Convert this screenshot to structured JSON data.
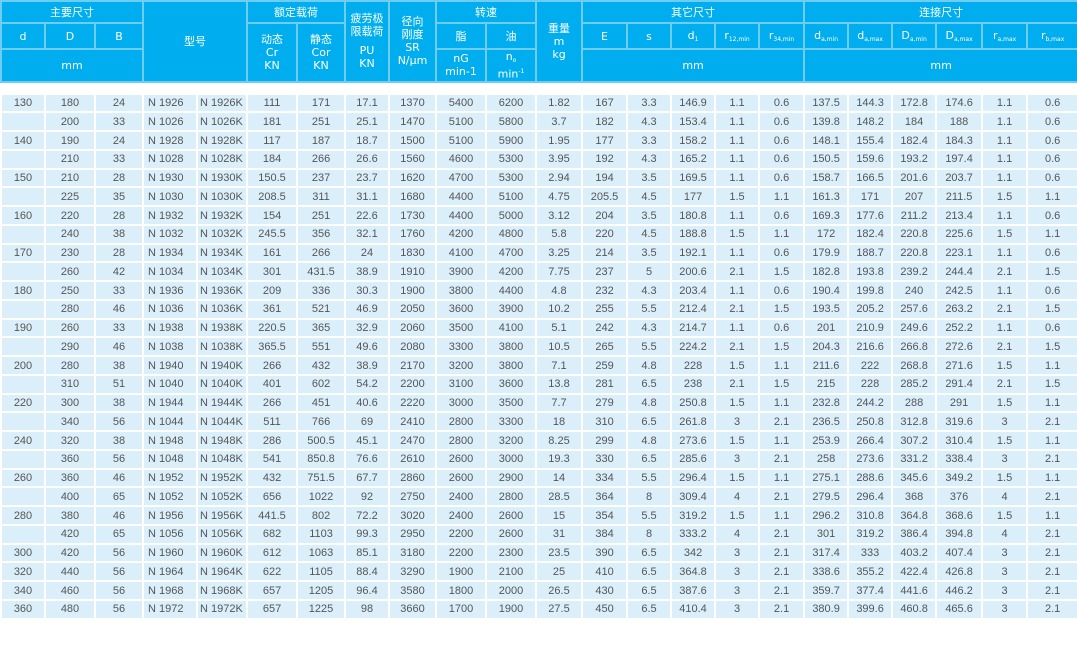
{
  "colors": {
    "header_bg": "#00aeef",
    "row_bg": "#dbeffb",
    "text": "#555555"
  },
  "header": {
    "main_dims": "主要尺寸",
    "d": "d",
    "D": "D",
    "B": "B",
    "mm": "mm",
    "model": "型号",
    "rated_load": "额定载荷",
    "dynamic": "动态",
    "Cr": "Cr",
    "static": "静态",
    "Cor": "Cor",
    "KN": "KN",
    "fatigue_1": "疲劳极",
    "fatigue_2": "限载荷",
    "PU": "PU",
    "radial_1": "径向",
    "radial_2": "刚度",
    "SR": "SR",
    "SR_unit": "N/μm",
    "speed": "转速",
    "grease": "脂",
    "oil": "油",
    "nG": "nG",
    "nG_unit": "min-1",
    "no": "n",
    "no_sub": "o",
    "no_unit": "min",
    "no_sup": "-1",
    "weight": "重量",
    "m": "m",
    "kg": "kg",
    "other_dims": "其它尺寸",
    "E": "E",
    "s": "s",
    "d1": "d",
    "d1_sub": "1",
    "r12": "r",
    "r12_sub": "12,min",
    "r34": "r",
    "r34_sub": "34,min",
    "conn_dims": "连接尺寸",
    "da_min": "d",
    "da_min_sub": "a,min",
    "da_max": "d",
    "da_max_sub": "a,max",
    "Da_min": "D",
    "Da_min_sub": "a,min",
    "Da_max": "D",
    "Da_max_sub": "a,max",
    "ra_max": "r",
    "ra_max_sub": "a,max",
    "rb_max": "r",
    "rb_max_sub": "b,max"
  },
  "rows": [
    [
      "130",
      "180",
      "24",
      "N 1926",
      "N 1926K",
      "111",
      "171",
      "17.1",
      "1370",
      "5400",
      "6200",
      "1.82",
      "167",
      "3.3",
      "146.9",
      "1.1",
      "0.6",
      "137.5",
      "144.3",
      "172.8",
      "174.6",
      "1.1",
      "0.6"
    ],
    [
      "",
      "200",
      "33",
      "N 1026",
      "N 1026K",
      "181",
      "251",
      "25.1",
      "1470",
      "5100",
      "5800",
      "3.7",
      "182",
      "4.3",
      "153.4",
      "1.1",
      "0.6",
      "139.8",
      "148.2",
      "184",
      "188",
      "1.1",
      "0.6"
    ],
    [
      "140",
      "190",
      "24",
      "N 1928",
      "N 1928K",
      "117",
      "187",
      "18.7",
      "1500",
      "5100",
      "5900",
      "1.95",
      "177",
      "3.3",
      "158.2",
      "1.1",
      "0.6",
      "148.1",
      "155.4",
      "182.4",
      "184.3",
      "1.1",
      "0.6"
    ],
    [
      "",
      "210",
      "33",
      "N 1028",
      "N 1028K",
      "184",
      "266",
      "26.6",
      "1560",
      "4600",
      "5300",
      "3.95",
      "192",
      "4.3",
      "165.2",
      "1.1",
      "0.6",
      "150.5",
      "159.6",
      "193.2",
      "197.4",
      "1.1",
      "0.6"
    ],
    [
      "150",
      "210",
      "28",
      "N 1930",
      "N 1930K",
      "150.5",
      "237",
      "23.7",
      "1620",
      "4700",
      "5300",
      "2.94",
      "194",
      "3.5",
      "169.5",
      "1.1",
      "0.6",
      "158.7",
      "166.5",
      "201.6",
      "203.7",
      "1.1",
      "0.6"
    ],
    [
      "",
      "225",
      "35",
      "N 1030",
      "N 1030K",
      "208.5",
      "311",
      "31.1",
      "1680",
      "4400",
      "5100",
      "4.75",
      "205.5",
      "4.5",
      "177",
      "1.5",
      "1.1",
      "161.3",
      "171",
      "207",
      "211.5",
      "1.5",
      "1.1"
    ],
    [
      "160",
      "220",
      "28",
      "N 1932",
      "N 1932K",
      "154",
      "251",
      "22.6",
      "1730",
      "4400",
      "5000",
      "3.12",
      "204",
      "3.5",
      "180.8",
      "1.1",
      "0.6",
      "169.3",
      "177.6",
      "211.2",
      "213.4",
      "1.1",
      "0.6"
    ],
    [
      "",
      "240",
      "38",
      "N 1032",
      "N 1032K",
      "245.5",
      "356",
      "32.1",
      "1760",
      "4200",
      "4800",
      "5.8",
      "220",
      "4.5",
      "188.8",
      "1.5",
      "1.1",
      "172",
      "182.4",
      "220.8",
      "225.6",
      "1.5",
      "1.1"
    ],
    [
      "170",
      "230",
      "28",
      "N 1934",
      "N 1934K",
      "161",
      "266",
      "24",
      "1830",
      "4100",
      "4700",
      "3.25",
      "214",
      "3.5",
      "192.1",
      "1.1",
      "0.6",
      "179.9",
      "188.7",
      "220.8",
      "223.1",
      "1.1",
      "0.6"
    ],
    [
      "",
      "260",
      "42",
      "N 1034",
      "N 1034K",
      "301",
      "431.5",
      "38.9",
      "1910",
      "3900",
      "4200",
      "7.75",
      "237",
      "5",
      "200.6",
      "2.1",
      "1.5",
      "182.8",
      "193.8",
      "239.2",
      "244.4",
      "2.1",
      "1.5"
    ],
    [
      "180",
      "250",
      "33",
      "N 1936",
      "N 1936K",
      "209",
      "336",
      "30.3",
      "1900",
      "3800",
      "4400",
      "4.8",
      "232",
      "4.3",
      "203.4",
      "1.1",
      "0.6",
      "190.4",
      "199.8",
      "240",
      "242.5",
      "1.1",
      "0.6"
    ],
    [
      "",
      "280",
      "46",
      "N 1036",
      "N 1036K",
      "361",
      "521",
      "46.9",
      "2050",
      "3600",
      "3900",
      "10.2",
      "255",
      "5.5",
      "212.4",
      "2.1",
      "1.5",
      "193.5",
      "205.2",
      "257.6",
      "263.2",
      "2.1",
      "1.5"
    ],
    [
      "190",
      "260",
      "33",
      "N 1938",
      "N 1938K",
      "220.5",
      "365",
      "32.9",
      "2060",
      "3500",
      "4100",
      "5.1",
      "242",
      "4.3",
      "214.7",
      "1.1",
      "0.6",
      "201",
      "210.9",
      "249.6",
      "252.2",
      "1.1",
      "0.6"
    ],
    [
      "",
      "290",
      "46",
      "N 1038",
      "N 1038K",
      "365.5",
      "551",
      "49.6",
      "2080",
      "3300",
      "3800",
      "10.5",
      "265",
      "5.5",
      "224.2",
      "2.1",
      "1.5",
      "204.3",
      "216.6",
      "266.8",
      "272.6",
      "2.1",
      "1.5"
    ],
    [
      "200",
      "280",
      "38",
      "N 1940",
      "N 1940K",
      "266",
      "432",
      "38.9",
      "2170",
      "3200",
      "3800",
      "7.1",
      "259",
      "4.8",
      "228",
      "1.5",
      "1.1",
      "211.6",
      "222",
      "268.8",
      "271.6",
      "1.5",
      "1.1"
    ],
    [
      "",
      "310",
      "51",
      "N 1040",
      "N 1040K",
      "401",
      "602",
      "54.2",
      "2200",
      "3100",
      "3600",
      "13.8",
      "281",
      "6.5",
      "238",
      "2.1",
      "1.5",
      "215",
      "228",
      "285.2",
      "291.4",
      "2.1",
      "1.5"
    ],
    [
      "220",
      "300",
      "38",
      "N 1944",
      "N 1944K",
      "266",
      "451",
      "40.6",
      "2220",
      "3000",
      "3500",
      "7.7",
      "279",
      "4.8",
      "250.8",
      "1.5",
      "1.1",
      "232.8",
      "244.2",
      "288",
      "291",
      "1.5",
      "1.1"
    ],
    [
      "",
      "340",
      "56",
      "N 1044",
      "N 1044K",
      "511",
      "766",
      "69",
      "2410",
      "2800",
      "3300",
      "18",
      "310",
      "6.5",
      "261.8",
      "3",
      "2.1",
      "236.5",
      "250.8",
      "312.8",
      "319.6",
      "3",
      "2.1"
    ],
    [
      "240",
      "320",
      "38",
      "N 1948",
      "N 1948K",
      "286",
      "500.5",
      "45.1",
      "2470",
      "2800",
      "3200",
      "8.25",
      "299",
      "4.8",
      "273.6",
      "1.5",
      "1.1",
      "253.9",
      "266.4",
      "307.2",
      "310.4",
      "1.5",
      "1.1"
    ],
    [
      "",
      "360",
      "56",
      "N 1048",
      "N 1048K",
      "541",
      "850.8",
      "76.6",
      "2610",
      "2600",
      "3000",
      "19.3",
      "330",
      "6.5",
      "285.6",
      "3",
      "2.1",
      "258",
      "273.6",
      "331.2",
      "338.4",
      "3",
      "2.1"
    ],
    [
      "260",
      "360",
      "46",
      "N 1952",
      "N 1952K",
      "432",
      "751.5",
      "67.7",
      "2860",
      "2600",
      "2900",
      "14",
      "334",
      "5.5",
      "296.4",
      "1.5",
      "1.1",
      "275.1",
      "288.6",
      "345.6",
      "349.2",
      "1.5",
      "1.1"
    ],
    [
      "",
      "400",
      "65",
      "N 1052",
      "N 1052K",
      "656",
      "1022",
      "92",
      "2750",
      "2400",
      "2800",
      "28.5",
      "364",
      "8",
      "309.4",
      "4",
      "2.1",
      "279.5",
      "296.4",
      "368",
      "376",
      "4",
      "2.1"
    ],
    [
      "280",
      "380",
      "46",
      "N 1956",
      "N 1956K",
      "441.5",
      "802",
      "72.2",
      "3020",
      "2400",
      "2600",
      "15",
      "354",
      "5.5",
      "319.2",
      "1.5",
      "1.1",
      "296.2",
      "310.8",
      "364.8",
      "368.6",
      "1.5",
      "1.1"
    ],
    [
      "",
      "420",
      "65",
      "N 1056",
      "N 1056K",
      "682",
      "1103",
      "99.3",
      "2950",
      "2200",
      "2600",
      "31",
      "384",
      "8",
      "333.2",
      "4",
      "2.1",
      "301",
      "319.2",
      "386.4",
      "394.8",
      "4",
      "2.1"
    ],
    [
      "300",
      "420",
      "56",
      "N 1960",
      "N 1960K",
      "612",
      "1063",
      "85.1",
      "3180",
      "2200",
      "2300",
      "23.5",
      "390",
      "6.5",
      "342",
      "3",
      "2.1",
      "317.4",
      "333",
      "403.2",
      "407.4",
      "3",
      "2.1"
    ],
    [
      "320",
      "440",
      "56",
      "N 1964",
      "N 1964K",
      "622",
      "1105",
      "88.4",
      "3290",
      "1900",
      "2100",
      "25",
      "410",
      "6.5",
      "364.8",
      "3",
      "2.1",
      "338.6",
      "355.2",
      "422.4",
      "426.8",
      "3",
      "2.1"
    ],
    [
      "340",
      "460",
      "56",
      "N 1968",
      "N 1968K",
      "657",
      "1205",
      "96.4",
      "3580",
      "1800",
      "2000",
      "26.5",
      "430",
      "6.5",
      "387.6",
      "3",
      "2.1",
      "359.7",
      "377.4",
      "441.6",
      "446.2",
      "3",
      "2.1"
    ],
    [
      "360",
      "480",
      "56",
      "N 1972",
      "N 1972K",
      "657",
      "1225",
      "98",
      "3660",
      "1700",
      "1900",
      "27.5",
      "450",
      "6.5",
      "410.4",
      "3",
      "2.1",
      "380.9",
      "399.6",
      "460.8",
      "465.6",
      "3",
      "2.1"
    ]
  ]
}
